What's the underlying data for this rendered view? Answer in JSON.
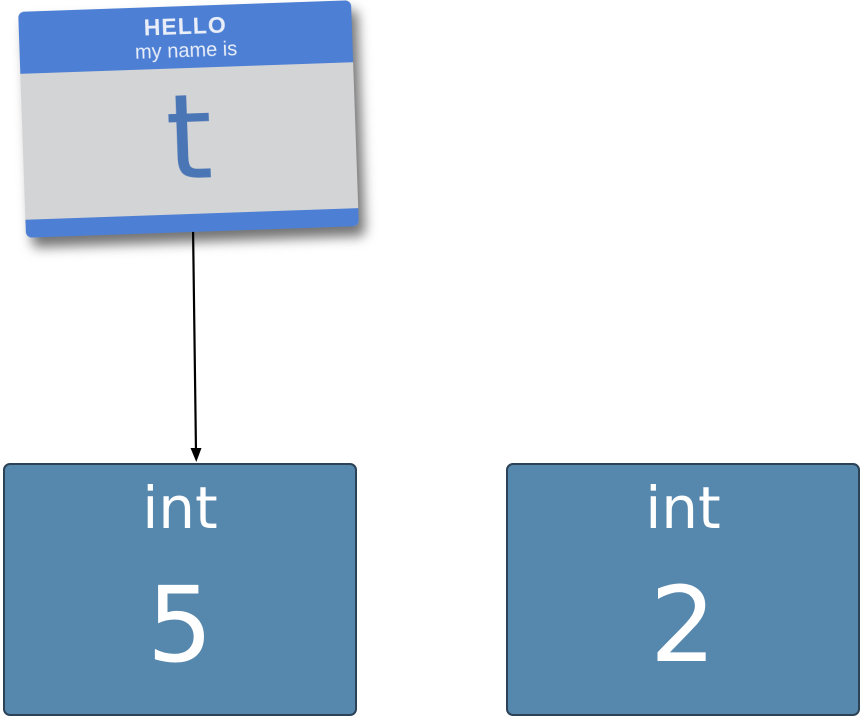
{
  "name_tag": {
    "hello": "HELLO",
    "my_name_is": "my name is",
    "name": "t"
  },
  "objects": [
    {
      "type": "int",
      "value": "5"
    },
    {
      "type": "int",
      "value": "2"
    }
  ],
  "colors": {
    "tag_blue": "#4d7fd4",
    "tag_body": "#d3d4d6",
    "tag_text": "#4b76b6",
    "box_fill": "#5687ad",
    "box_border": "#2c4257",
    "arrow": "#000000"
  }
}
